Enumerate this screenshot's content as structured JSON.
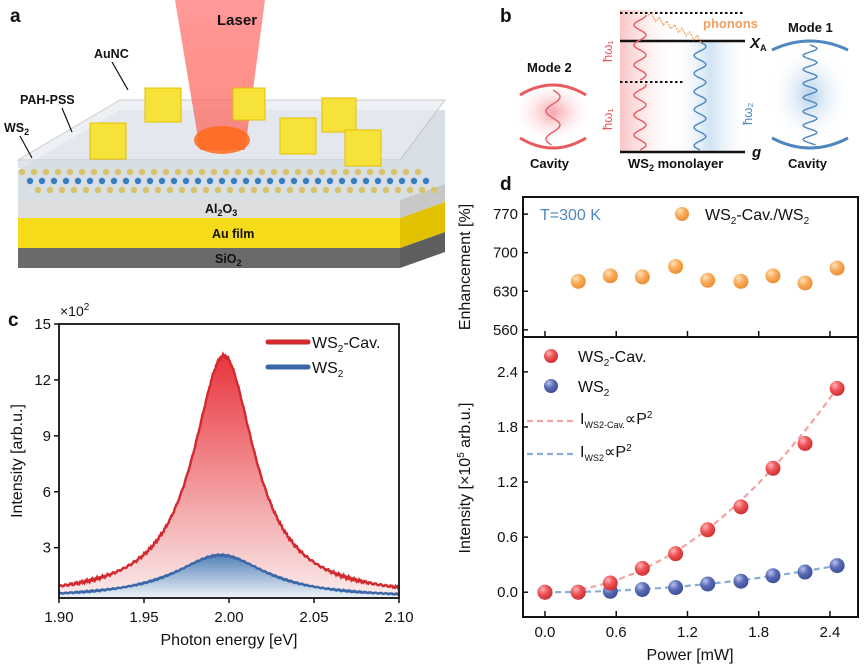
{
  "panel_labels": {
    "a": "a",
    "b": "b",
    "c": "c",
    "d": "d"
  },
  "panel_a": {
    "laser": "Laser",
    "aunc": "AuNC",
    "pah_pss": "PAH-PSS",
    "ws2_main": "WS",
    "ws2_sub": "2",
    "al2o3_a": "Al",
    "al2o3_b": "2",
    "al2o3_c": "O",
    "al2o3_d": "3",
    "au_film": "Au film",
    "sio2_main": "SiO",
    "sio2_sub": "2"
  },
  "panel_b": {
    "mode2": "Mode 2",
    "mode1": "Mode 1",
    "cavity_left": "Cavity",
    "cavity_right": "Cavity",
    "monolayer_main": "WS",
    "monolayer_sub": "2",
    "monolayer_rest": " monolayer",
    "phonons": "phonons",
    "xa_main": "X",
    "xa_sub": "A",
    "g": "g",
    "hw1_top": "ħω₁",
    "hw1_bottom": "ħω₁",
    "hw2": "ħω₂",
    "colors": {
      "red": "#e85a5e",
      "blue": "#4f86c0",
      "orange": "#f0a060"
    }
  },
  "chart_data": [
    {
      "id": "c",
      "type": "area",
      "xlabel": "Photon energy [eV]",
      "ylabel": "Intensity [arb.u.]",
      "y_multiplier": "×10",
      "y_multiplier_exp": "2",
      "xlim": [
        1.9,
        2.1
      ],
      "ylim": [
        0.3,
        15
      ],
      "xticks": [
        "1.90",
        "1.95",
        "2.00",
        "2.05",
        "2.10"
      ],
      "yticks": [
        "3",
        "6",
        "9",
        "12",
        "15"
      ],
      "legend_position": "top-right",
      "series": [
        {
          "name_main": "WS",
          "name_sub": "2",
          "name_rest": "-Cav.",
          "color": "#d12a2f",
          "fill": "#e8434a",
          "peak_center": 1.997,
          "peak_height": 13.3,
          "fwhm": 0.044,
          "baseline": 0.3
        },
        {
          "name_main": "WS",
          "name_sub": "2",
          "name_rest": "",
          "color": "#3a67a8",
          "fill": "#3f78b4",
          "peak_center": 1.995,
          "peak_height": 2.6,
          "fwhm": 0.066,
          "baseline": 0.3
        }
      ]
    },
    {
      "id": "d-top",
      "type": "scatter",
      "ylabel": "Enhancement [%]",
      "annotation": "T=300 K",
      "xlim": [
        -0.185,
        2.636
      ],
      "ylim": [
        547,
        801
      ],
      "yticks": [
        "560",
        "630",
        "700",
        "770"
      ],
      "legend_position": "top-right",
      "series": [
        {
          "name_a": "WS",
          "name_b": "2",
          "name_c": "-Cav./WS",
          "name_d": "2",
          "color": "#f5a855",
          "x": [
            0.28,
            0.55,
            0.82,
            1.1,
            1.37,
            1.65,
            1.92,
            2.19,
            2.46
          ],
          "y": [
            648,
            658,
            656,
            675,
            650,
            648,
            658,
            645,
            672
          ]
        }
      ]
    },
    {
      "id": "d-bottom",
      "type": "scatter",
      "xlabel": "Power [mW]",
      "ylabel_a": "Intensity [×10",
      "ylabel_b": "5",
      "ylabel_c": " arb.u.]",
      "xlim": [
        -0.185,
        2.636
      ],
      "ylim": [
        -0.27,
        2.78
      ],
      "xticks": [
        "0.0",
        "0.6",
        "1.2",
        "1.8",
        "2.4"
      ],
      "yticks": [
        "0.0",
        "0.6",
        "1.2",
        "1.8",
        "2.4"
      ],
      "legend_position": "top-left",
      "series": [
        {
          "name_main": "WS",
          "name_sub": "2",
          "name_rest": "-Cav.",
          "color": "#ea4f52",
          "x": [
            0.0,
            0.28,
            0.55,
            0.82,
            1.1,
            1.37,
            1.65,
            1.92,
            2.19,
            2.46
          ],
          "y": [
            0.0,
            0.0,
            0.1,
            0.26,
            0.42,
            0.68,
            0.93,
            1.35,
            1.62,
            2.22
          ],
          "fit_coeff": 0.367,
          "fit_color": "#f4a3a3",
          "fit_label_a": "I",
          "fit_label_b": "WS2-Cav.",
          "fit_label_c": "∝P",
          "fit_label_d": "2"
        },
        {
          "name_main": "WS",
          "name_sub": "2",
          "name_rest": "",
          "color": "#5567b0",
          "x": [
            0.0,
            0.28,
            0.55,
            0.82,
            1.1,
            1.37,
            1.65,
            1.92,
            2.19,
            2.46
          ],
          "y": [
            0.0,
            0.0,
            0.01,
            0.03,
            0.05,
            0.09,
            0.12,
            0.18,
            0.22,
            0.29
          ],
          "fit_coeff": 0.048,
          "fit_color": "#88aed6",
          "fit_label_a": "I",
          "fit_label_b": "WS2",
          "fit_label_c": "∝P",
          "fit_label_d": "2"
        }
      ]
    }
  ]
}
